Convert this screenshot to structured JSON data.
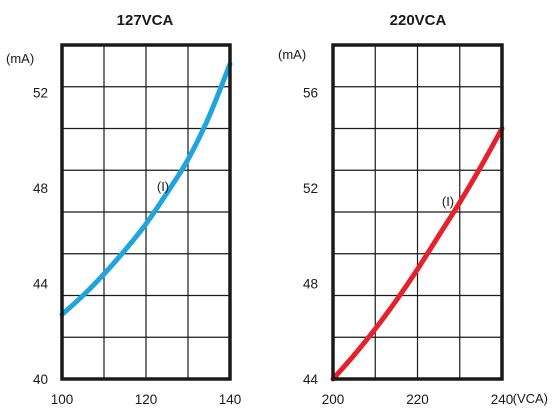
{
  "chart_data": [
    {
      "type": "line",
      "title": "127VCA",
      "ylabel": "(mA)",
      "xlabel": "",
      "xlim": [
        100,
        140
      ],
      "ylim": [
        40,
        54
      ],
      "x_ticks": [
        "100",
        "120",
        "140"
      ],
      "y_ticks": [
        "40",
        "44",
        "48",
        "52"
      ],
      "grid": true,
      "series": [
        {
          "name": "(I)",
          "color": "#1ea5e0",
          "x": [
            100,
            105,
            110,
            115,
            120,
            125,
            130,
            135,
            140
          ],
          "y": [
            42.7,
            43.5,
            44.4,
            45.4,
            46.5,
            47.8,
            49.2,
            51.0,
            53.2
          ]
        }
      ]
    },
    {
      "type": "line",
      "title": "220VCA",
      "ylabel": "(mA)",
      "xlabel": "(VCA)",
      "xlim": [
        200,
        240
      ],
      "ylim": [
        44,
        58
      ],
      "x_ticks": [
        "200",
        "220",
        "240"
      ],
      "y_ticks": [
        "44",
        "48",
        "52",
        "56"
      ],
      "grid": true,
      "series": [
        {
          "name": "(I)",
          "color": "#e5212b",
          "x": [
            200,
            205,
            210,
            215,
            220,
            225,
            230,
            235,
            240
          ],
          "y": [
            44.0,
            45.0,
            46.1,
            47.3,
            48.6,
            50.0,
            51.4,
            52.9,
            54.5
          ]
        }
      ]
    }
  ]
}
